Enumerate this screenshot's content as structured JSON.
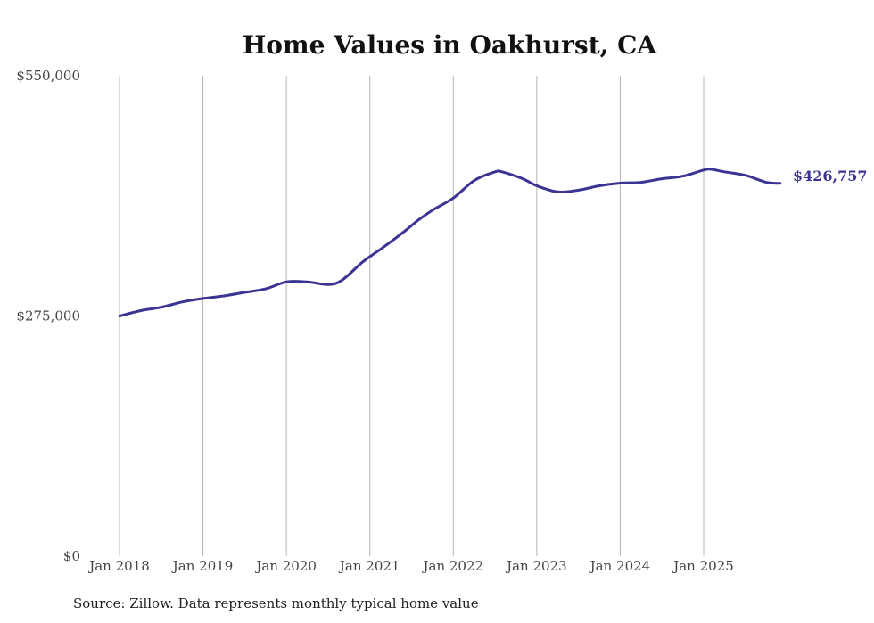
{
  "chart_data": {
    "type": "line",
    "title": "Home Values in Oakhurst, CA",
    "xlabel": "",
    "ylabel": "",
    "ylim": [
      0,
      550000
    ],
    "y_ticks": [
      {
        "value": 0,
        "label": "$0"
      },
      {
        "value": 275000,
        "label": "$275,000"
      },
      {
        "value": 550000,
        "label": "$550,000"
      }
    ],
    "x_ticks": [
      {
        "value": 2018,
        "label": "Jan 2018"
      },
      {
        "value": 2019,
        "label": "Jan 2019"
      },
      {
        "value": 2020,
        "label": "Jan 2020"
      },
      {
        "value": 2021,
        "label": "Jan 2021"
      },
      {
        "value": 2022,
        "label": "Jan 2022"
      },
      {
        "value": 2023,
        "label": "Jan 2023"
      },
      {
        "value": 2024,
        "label": "Jan 2024"
      },
      {
        "value": 2025,
        "label": "Jan 2025"
      }
    ],
    "xlim": [
      2018,
      2025.917
    ],
    "grid": "vertical",
    "color": "#3b3494",
    "series": [
      {
        "name": "Typical home value",
        "x": [
          2018.0,
          2018.25,
          2018.5,
          2018.75,
          2019.0,
          2019.25,
          2019.5,
          2019.75,
          2020.0,
          2020.25,
          2020.5,
          2020.667,
          2020.917,
          2021.167,
          2021.417,
          2021.583,
          2021.75,
          2022.0,
          2022.25,
          2022.5,
          2022.583,
          2022.833,
          2023.0,
          2023.25,
          2023.5,
          2023.75,
          2024.0,
          2024.25,
          2024.5,
          2024.75,
          2025.0,
          2025.083,
          2025.25,
          2025.5,
          2025.75,
          2025.917
        ],
        "values": [
          275000,
          281000,
          285000,
          291000,
          295000,
          298000,
          302000,
          306000,
          314000,
          314000,
          311000,
          316000,
          337000,
          354000,
          372000,
          385000,
          396000,
          410000,
          430000,
          440000,
          440000,
          432000,
          424000,
          417000,
          419000,
          424000,
          427000,
          428000,
          432000,
          435000,
          442000,
          443000,
          440000,
          436000,
          428000,
          426757
        ]
      }
    ],
    "end_label": "$426,757"
  },
  "source": "Source: Zillow. Data represents monthly typical home value"
}
